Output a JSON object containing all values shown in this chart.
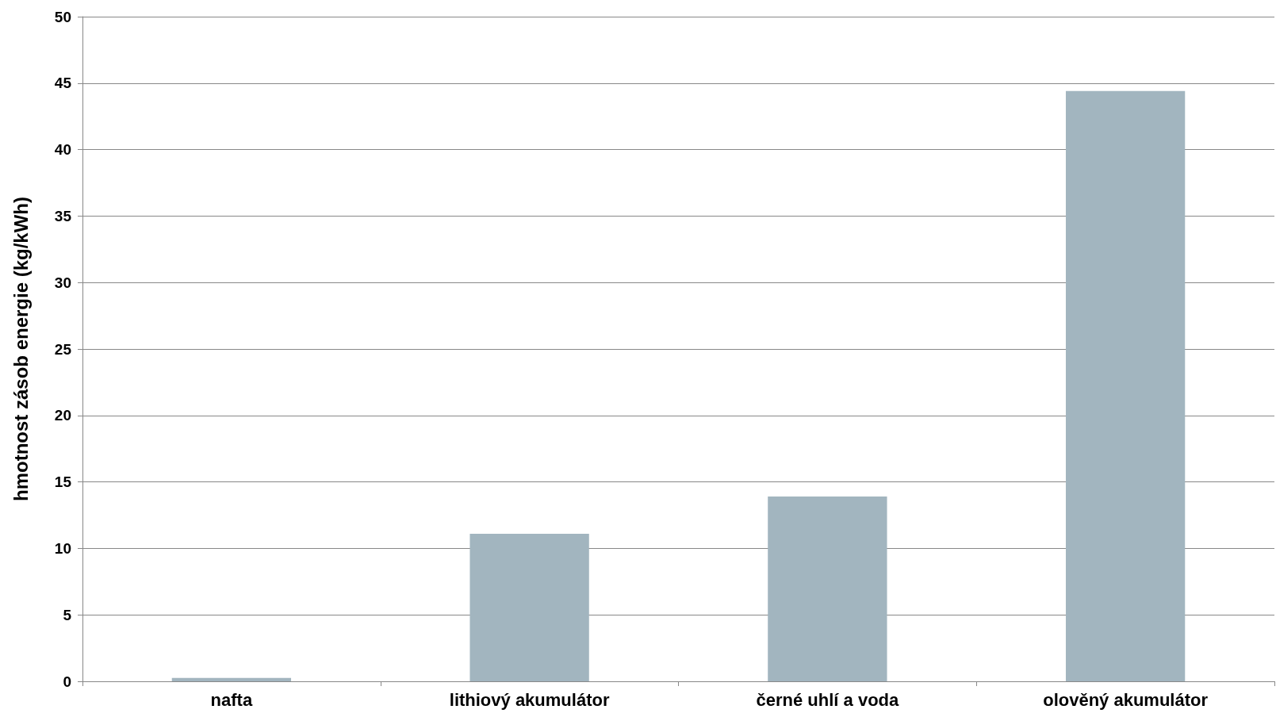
{
  "chart_data": {
    "type": "bar",
    "ylabel": "hmotnost zásob energie (kg/kWh)",
    "categories": [
      "nafta",
      "lithiový akumulátor",
      "černé uhlí a voda",
      "olověný akumulátor"
    ],
    "values": [
      0.25,
      11.1,
      13.9,
      44.4
    ],
    "color": "#a2b5bf",
    "ylim": [
      0,
      50
    ],
    "yticks": [
      0,
      5,
      10,
      15,
      20,
      25,
      30,
      35,
      40,
      45,
      50
    ],
    "grid": "y"
  }
}
